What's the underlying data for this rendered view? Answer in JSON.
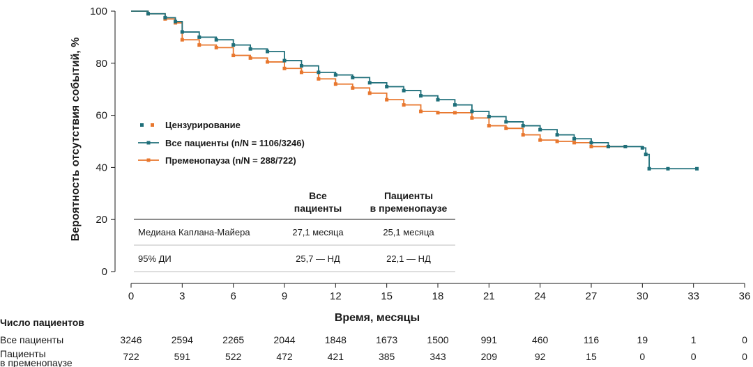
{
  "chart_data": {
    "type": "line",
    "title": "",
    "xlabel": "Время, месяцы",
    "ylabel": "Вероятность отсутствия событий, %",
    "xlim": [
      0,
      36
    ],
    "ylim": [
      0,
      100
    ],
    "x_ticks": [
      0,
      3,
      6,
      9,
      12,
      15,
      18,
      21,
      24,
      27,
      30,
      33,
      36
    ],
    "y_ticks": [
      0,
      20,
      40,
      60,
      80,
      100
    ],
    "colors": {
      "all": "#1f6f7a",
      "premenopause": "#e8772e"
    },
    "legend": {
      "censoring": "Цензурирование",
      "series": [
        "Все пациенты (n/N = 1106/3246)",
        "Пременопауза (n/N = 288/722)"
      ]
    },
    "series": [
      {
        "name": "Все пациенты (n/N = 1106/3246)",
        "x": [
          0,
          1,
          2,
          2.6,
          3,
          4,
          5,
          6,
          7,
          8,
          9,
          10,
          11,
          12,
          13,
          14,
          15,
          16,
          17,
          18,
          19,
          20,
          21,
          22,
          23,
          24,
          25,
          26,
          27,
          28,
          29,
          30,
          30.2,
          30.4,
          31.5,
          33.2
        ],
        "y": [
          100,
          99,
          97.5,
          96,
          92,
          90,
          89,
          87,
          85.5,
          84.5,
          81,
          79,
          76.5,
          75.5,
          74.5,
          72.5,
          71,
          69.5,
          67.5,
          66,
          64,
          61.5,
          59.5,
          57.5,
          56,
          54.5,
          52.5,
          51,
          49.5,
          48,
          48,
          47.5,
          45,
          39.5,
          39.5,
          39.5
        ]
      },
      {
        "name": "Пременопауза (n/N = 288/722)",
        "x": [
          0,
          1,
          2,
          2.6,
          3,
          4,
          5,
          6,
          7,
          8,
          9,
          10,
          11,
          12,
          13,
          14,
          15,
          16,
          17,
          18,
          19,
          20,
          21,
          22,
          23,
          24,
          25,
          26,
          27,
          28,
          29
        ],
        "y": [
          100,
          99,
          97,
          95.5,
          89,
          87,
          86,
          83,
          82,
          80.5,
          78,
          76.5,
          74,
          72,
          70.5,
          68.5,
          66,
          64,
          61.5,
          61,
          61,
          59,
          56,
          55,
          52.5,
          50.5,
          50,
          49.5,
          48,
          48,
          48
        ]
      }
    ],
    "table": {
      "headers": [
        "",
        "Все\nпациенты",
        "Пациенты\nв пременопаузе"
      ],
      "rows": [
        [
          "Медиана Каплана-Майера",
          "27,1 месяца",
          "25,1 месяца"
        ],
        [
          "95% ДИ",
          "25,7 — НД",
          "22,1 — НД"
        ]
      ]
    },
    "risk_table": {
      "title": "Число пациентов",
      "rows": [
        {
          "label": "Все пациенты",
          "values": [
            3246,
            2594,
            2265,
            2044,
            1848,
            1673,
            1500,
            991,
            460,
            116,
            19,
            1,
            0
          ]
        },
        {
          "label": "Пациенты\nв пременопаузе",
          "values": [
            722,
            591,
            522,
            472,
            421,
            385,
            343,
            209,
            92,
            15,
            0,
            0,
            0
          ]
        }
      ]
    }
  }
}
